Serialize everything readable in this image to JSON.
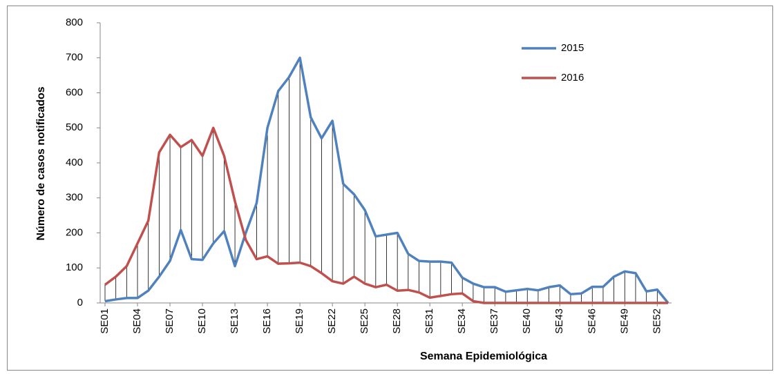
{
  "chart_data": {
    "type": "line",
    "x_label": "Semana Epidemiológica",
    "y_label": "Número de casos notificados",
    "categories": [
      "SE01",
      null,
      null,
      "SE04",
      null,
      null,
      "SE07",
      null,
      null,
      "SE10",
      null,
      null,
      "SE13",
      null,
      null,
      "SE16",
      null,
      null,
      "SE19",
      null,
      null,
      "SE22",
      null,
      null,
      "SE25",
      null,
      null,
      "SE28",
      null,
      null,
      "SE31",
      null,
      null,
      "SE34",
      null,
      null,
      "SE37",
      null,
      null,
      "SE40",
      null,
      null,
      "SE43",
      null,
      null,
      "SE46",
      null,
      null,
      "SE49",
      null,
      null,
      "SE52",
      null
    ],
    "series": [
      {
        "name": "2015",
        "color": "#4f81bd",
        "values": [
          5,
          10,
          14,
          14,
          35,
          75,
          120,
          208,
          125,
          123,
          170,
          205,
          105,
          200,
          285,
          500,
          605,
          645,
          700,
          530,
          470,
          520,
          340,
          310,
          265,
          190,
          195,
          200,
          140,
          120,
          118,
          118,
          115,
          72,
          55,
          45,
          45,
          32,
          36,
          40,
          36,
          45,
          50,
          25,
          27,
          46,
          46,
          75,
          90,
          85,
          33,
          38,
          0
        ]
      },
      {
        "name": "2016",
        "color": "#c0504d",
        "values": [
          52,
          75,
          105,
          170,
          235,
          430,
          480,
          445,
          465,
          420,
          500,
          420,
          290,
          180,
          125,
          133,
          112,
          113,
          115,
          105,
          85,
          62,
          55,
          75,
          55,
          45,
          52,
          35,
          37,
          30,
          15,
          20,
          25,
          27,
          5,
          0,
          0,
          0,
          0,
          0,
          0,
          0,
          0,
          0,
          0,
          0,
          0,
          0,
          0,
          0,
          0,
          0,
          0
        ]
      }
    ],
    "ylim": [
      0,
      800
    ],
    "yticks": [
      0,
      100,
      200,
      300,
      400,
      500,
      600,
      700,
      800
    ],
    "high_low_lines": true,
    "legend": "top-right"
  }
}
